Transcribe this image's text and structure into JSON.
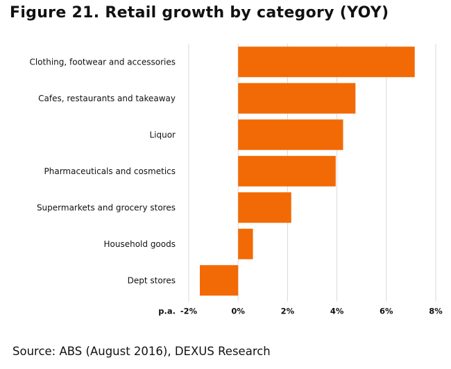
{
  "title": "Figure 21. Retail growth by category (YOY)",
  "source": "Source: ABS (August 2016), DEXUS Research",
  "chart_data": {
    "type": "bar",
    "orientation": "horizontal",
    "categories": [
      "Clothing, footwear and accessories",
      "Cafes, restaurants and takeaway",
      "Liquor",
      "Pharmaceuticals and cosmetics",
      "Supermarkets and grocery stores",
      "Household goods",
      "Dept stores"
    ],
    "values": [
      7.15,
      4.75,
      4.25,
      3.95,
      2.15,
      0.6,
      -1.55
    ],
    "xlim": [
      -2,
      8
    ],
    "ticks": [
      -2,
      0,
      2,
      4,
      6,
      8
    ],
    "tick_labels": [
      "-2%",
      "0%",
      "2%",
      "4%",
      "6%",
      "8%"
    ],
    "unit_label": "p.a.",
    "bar_color": "#f26a05",
    "grid": true
  }
}
